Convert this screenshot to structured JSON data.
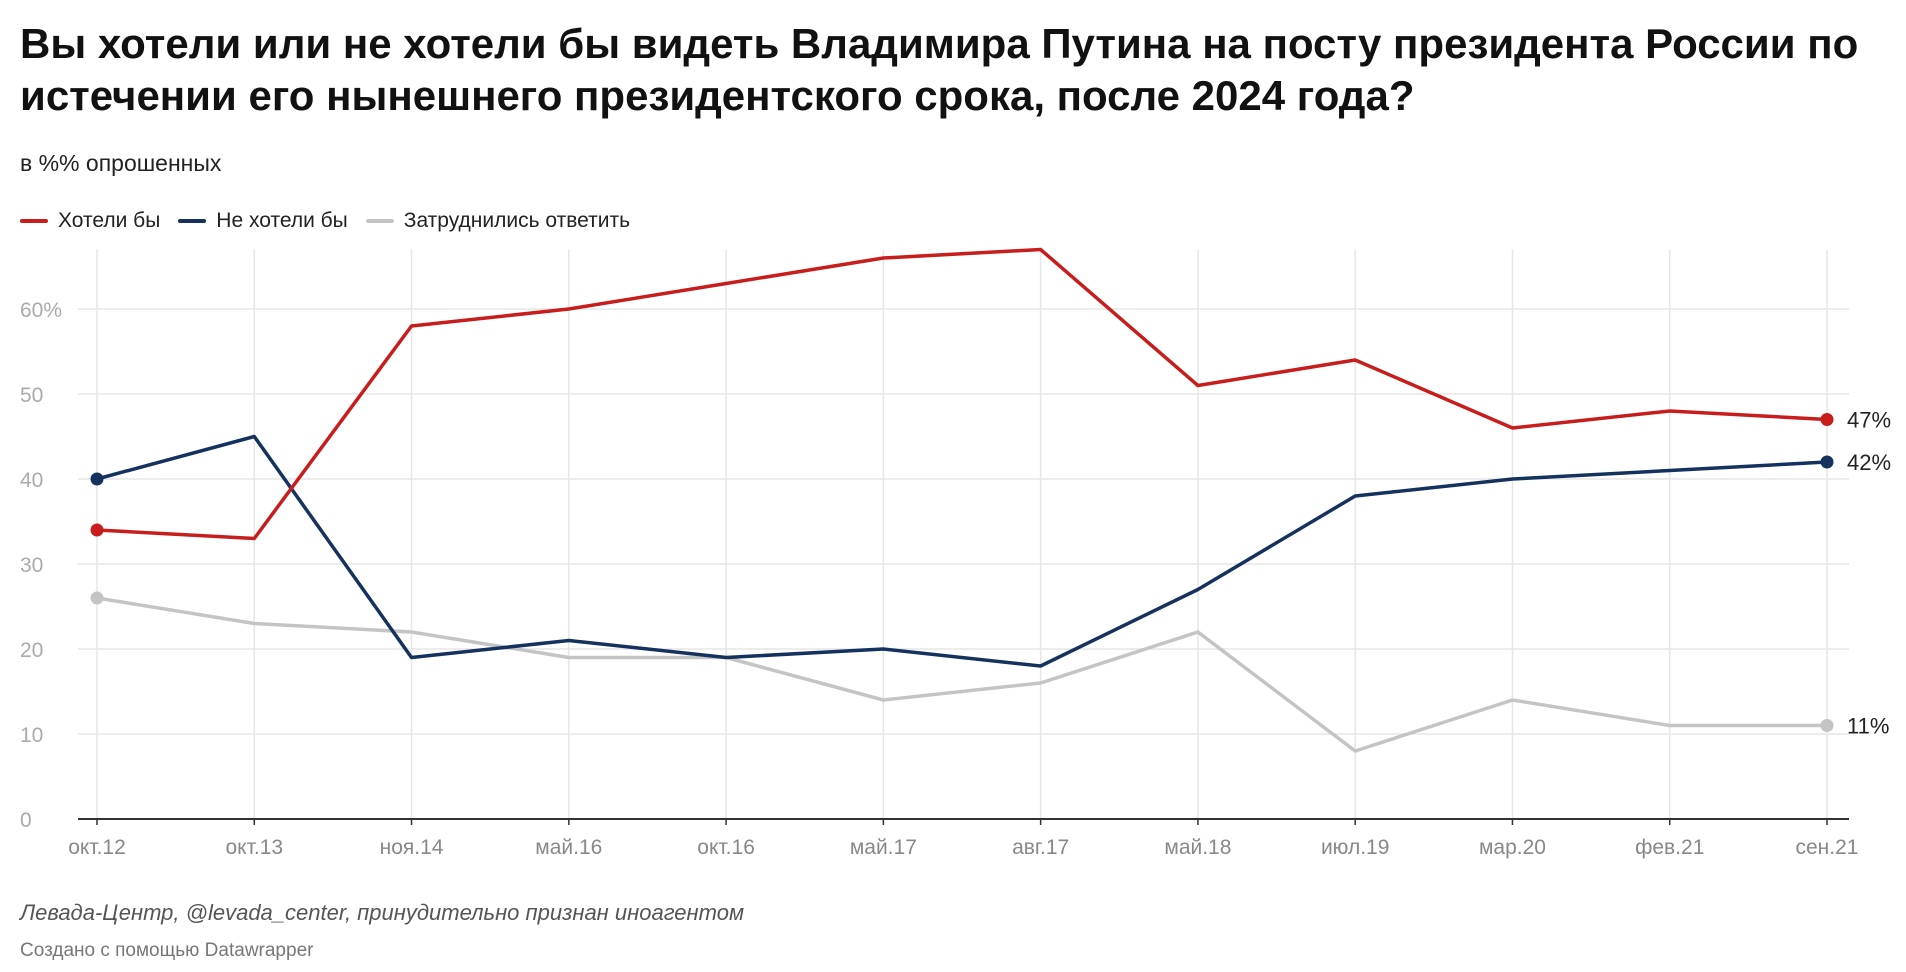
{
  "header": {
    "title": "Вы хотели или не хотели бы видеть Владимира Путина на посту президента России по истечении его нынешнего президентского срока, после 2024 года?",
    "subtitle": "в %% опрошенных"
  },
  "footer": {
    "source": "Левада-Центр, @levada_center, принудительно признан иноагентом",
    "credit": "Создано с помощью Datawrapper"
  },
  "chart_data": {
    "type": "line",
    "title": "Вы хотели или не хотели бы видеть Владимира Путина на посту президента России по истечении его нынешнего президентского срока, после 2024 года?",
    "subtitle": "в %% опрошенных",
    "categories": [
      "окт.12",
      "окт.13",
      "ноя.14",
      "май.16",
      "окт.16",
      "май.17",
      "авг.17",
      "май.18",
      "июл.19",
      "мар.20",
      "фев.21",
      "сен.21"
    ],
    "ylim": [
      0,
      67
    ],
    "yticks": [
      0,
      10,
      20,
      30,
      40,
      50,
      60
    ],
    "ytick_labels": [
      "0",
      "10",
      "20",
      "30",
      "40",
      "50",
      "60%"
    ],
    "grid": true,
    "legend_position": "top-left",
    "series": [
      {
        "name": "Хотели бы",
        "color": "#c71e1d",
        "values": [
          34,
          33,
          58,
          60,
          63,
          66,
          67,
          51,
          54,
          46,
          48,
          47
        ],
        "end_label": "47%"
      },
      {
        "name": "Не хотели бы",
        "color": "#15325e",
        "values": [
          40,
          45,
          19,
          21,
          19,
          20,
          18,
          27,
          38,
          40,
          41,
          42
        ],
        "end_label": "42%"
      },
      {
        "name": "Затруднились ответить",
        "color": "#c4c4c4",
        "values": [
          26,
          23,
          22,
          19,
          19,
          14,
          16,
          22,
          8,
          14,
          11,
          11
        ],
        "end_label": "11%"
      }
    ]
  }
}
